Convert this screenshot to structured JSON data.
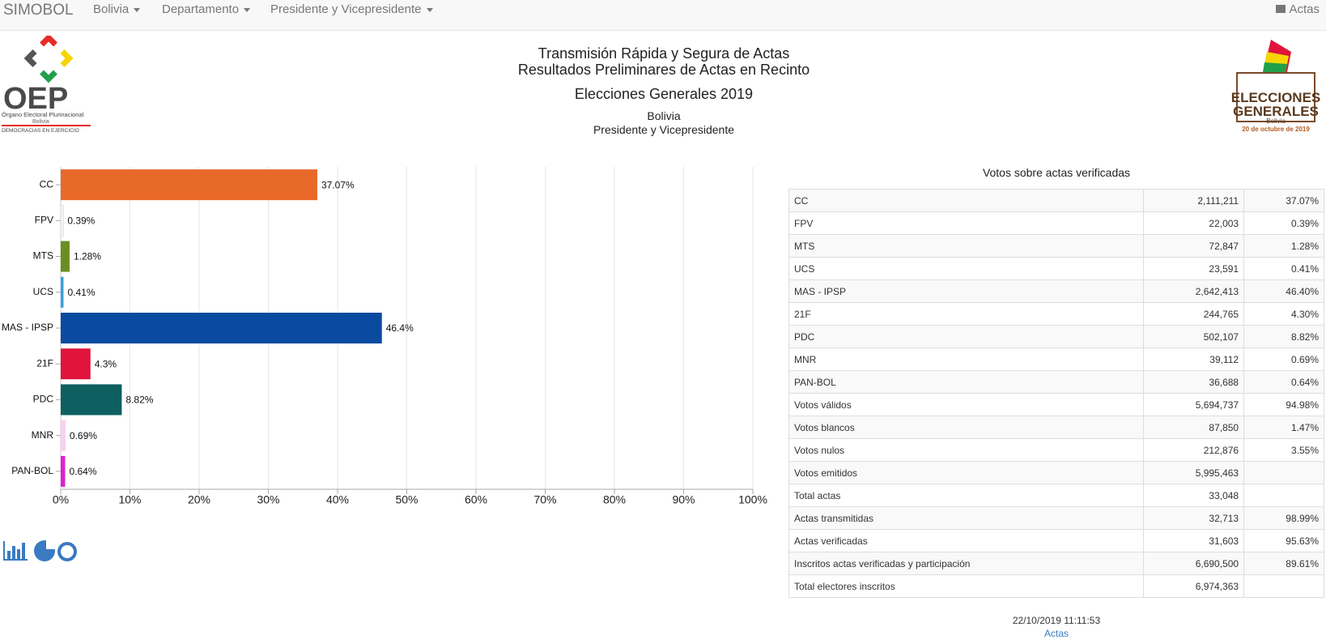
{
  "nav": {
    "brand": "SIMOBOL",
    "menus": [
      "Bolivia",
      "Departamento",
      "Presidente y Vicepresidente"
    ],
    "actas": "Actas"
  },
  "header": {
    "line1": "Transmisión Rápida y Segura de Actas",
    "line2": "Resultados Preliminares de Actas en Recinto",
    "title": "Elecciones Generales 2019",
    "place": "Bolivia",
    "office": "Presidente y Vicepresidente"
  },
  "logo_left": {
    "name": "OEP",
    "full": "Órgano Electoral Plurinacional",
    "country": "Bolivia",
    "motto": "DEMOCRACIAS EN EJERCICIO"
  },
  "logo_right": {
    "line1": "ELECCIONES",
    "line2": "GENERALES",
    "country": "Bolivia",
    "date": "20 de octubre de 2019"
  },
  "chart_data": {
    "type": "bar",
    "orientation": "horizontal",
    "categories": [
      "CC",
      "FPV",
      "MTS",
      "UCS",
      "MAS - IPSP",
      "21F",
      "PDC",
      "MNR",
      "PAN-BOL"
    ],
    "values": [
      37.07,
      0.39,
      1.28,
      0.41,
      46.4,
      4.3,
      8.82,
      0.69,
      0.64
    ],
    "value_labels": [
      "37.07%",
      "0.39%",
      "1.28%",
      "0.41%",
      "46.4%",
      "4.3%",
      "8.82%",
      "0.69%",
      "0.64%"
    ],
    "colors": [
      "#e8692a",
      "#f4f4f4",
      "#6b8e23",
      "#3aa0e0",
      "#0a4aa0",
      "#e0143c",
      "#0e6060",
      "#f6d0f2",
      "#e020d0"
    ],
    "xlim": [
      0,
      100
    ],
    "xticks": [
      {
        "value": 0,
        "label": "0%"
      },
      {
        "value": 10,
        "label": "10%"
      },
      {
        "value": 20,
        "label": "20%"
      },
      {
        "value": 30,
        "label": "30%"
      },
      {
        "value": 40,
        "label": "40%"
      },
      {
        "value": 50,
        "label": "50%"
      },
      {
        "value": 60,
        "label": "60%"
      },
      {
        "value": 70,
        "label": "70%"
      },
      {
        "value": 80,
        "label": "80%"
      },
      {
        "value": 90,
        "label": "90%"
      },
      {
        "value": 100,
        "label": "100%"
      }
    ],
    "grid": true
  },
  "table": {
    "title": "Votos sobre actas verificadas",
    "rows": [
      [
        "CC",
        "2,111,211",
        "37.07%"
      ],
      [
        "FPV",
        "22,003",
        "0.39%"
      ],
      [
        "MTS",
        "72,847",
        "1.28%"
      ],
      [
        "UCS",
        "23,591",
        "0.41%"
      ],
      [
        "MAS - IPSP",
        "2,642,413",
        "46.40%"
      ],
      [
        "21F",
        "244,765",
        "4.30%"
      ],
      [
        "PDC",
        "502,107",
        "8.82%"
      ],
      [
        "MNR",
        "39,112",
        "0.69%"
      ],
      [
        "PAN-BOL",
        "36,688",
        "0.64%"
      ],
      [
        "Votos válidos",
        "5,694,737",
        "94.98%"
      ],
      [
        "Votos blancos",
        "87,850",
        "1.47%"
      ],
      [
        "Votos nulos",
        "212,876",
        "3.55%"
      ],
      [
        "Votos emitidos",
        "5,995,463"
      ],
      [
        "Total actas",
        "33,048"
      ],
      [
        "Actas transmitidas",
        "32,713",
        "98.99%"
      ],
      [
        "Actas verificadas",
        "31,603",
        "95.63%"
      ],
      [
        "Inscritos actas verificadas y participación",
        "6,690,500",
        "89.61%"
      ],
      [
        "Total electores inscritos",
        "6,974,363"
      ]
    ]
  },
  "footer": {
    "timestamp": "22/10/2019 11:11:53",
    "link": "Actas"
  }
}
